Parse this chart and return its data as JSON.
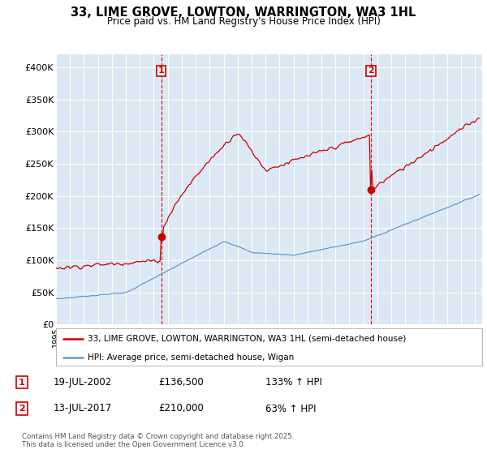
{
  "title": "33, LIME GROVE, LOWTON, WARRINGTON, WA3 1HL",
  "subtitle": "Price paid vs. HM Land Registry's House Price Index (HPI)",
  "ylabel_ticks": [
    "£0",
    "£50K",
    "£100K",
    "£150K",
    "£200K",
    "£250K",
    "£300K",
    "£350K",
    "£400K"
  ],
  "ytick_vals": [
    0,
    50000,
    100000,
    150000,
    200000,
    250000,
    300000,
    350000,
    400000
  ],
  "ylim": [
    0,
    420000
  ],
  "xlim_start": 1995.0,
  "xlim_end": 2025.5,
  "red_color": "#cc0000",
  "blue_color": "#6699cc",
  "bg_color": "#dce9f5",
  "legend_entry1": "33, LIME GROVE, LOWTON, WARRINGTON, WA3 1HL (semi-detached house)",
  "legend_entry2": "HPI: Average price, semi-detached house, Wigan",
  "sale1_date": "19-JUL-2002",
  "sale1_price": "£136,500",
  "sale1_hpi": "133% ↑ HPI",
  "sale2_date": "13-JUL-2017",
  "sale2_price": "£210,000",
  "sale2_hpi": "63% ↑ HPI",
  "footer": "Contains HM Land Registry data © Crown copyright and database right 2025.\nThis data is licensed under the Open Government Licence v3.0.",
  "vline1_x": 2002.54,
  "vline2_x": 2017.54,
  "sale1_val": 136500,
  "sale2_val": 210000,
  "sale1_year": 2002.54,
  "sale2_year": 2017.54
}
